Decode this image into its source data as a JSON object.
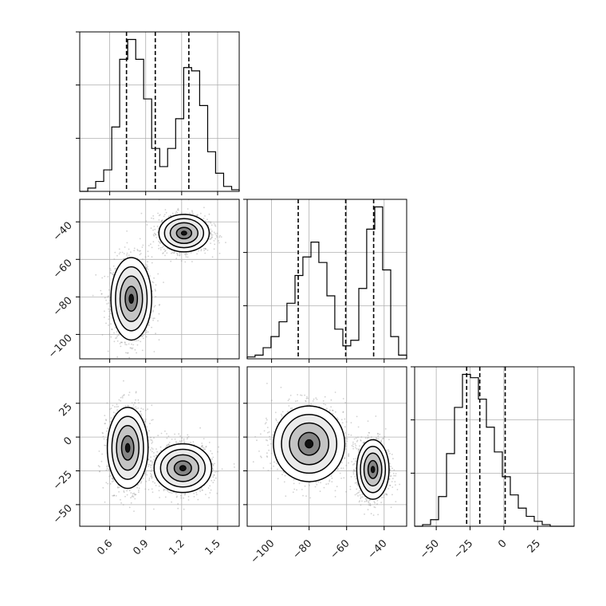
{
  "chart_data": {
    "type": "corner",
    "parameters": [
      "",
      "",
      ""
    ],
    "style": {
      "grid": true,
      "ink": "#000000",
      "grid_color": "#b0b0b0",
      "points_color": "#9a9a9a"
    },
    "axes": {
      "p0": {
        "lim": [
          0.35,
          1.68
        ],
        "ticks": [
          0.6,
          0.9,
          1.2,
          1.5
        ],
        "labels": [
          "0.6",
          "0.9",
          "1.2",
          "1.5"
        ]
      },
      "p1": {
        "lim": [
          -113,
          -28
        ],
        "ticks": [
          -100,
          -80,
          -60,
          -40
        ],
        "labels": [
          "−100",
          "−80",
          "−60",
          "−40"
        ]
      },
      "p2": {
        "lim": [
          -66,
          52
        ],
        "ticks": [
          -50,
          -25,
          0,
          25
        ],
        "labels": [
          "−50",
          "−25",
          "0",
          "25"
        ]
      }
    },
    "histograms": [
      {
        "param": "p0",
        "edges": [
          0.35,
          0.417,
          0.483,
          0.55,
          0.617,
          0.683,
          0.75,
          0.817,
          0.883,
          0.95,
          1.017,
          1.083,
          1.15,
          1.217,
          1.283,
          1.35,
          1.417,
          1.483,
          1.55,
          1.617,
          1.68
        ],
        "counts": [
          0.0,
          0.02,
          0.06,
          0.13,
          0.39,
          0.8,
          0.92,
          0.8,
          0.56,
          0.26,
          0.15,
          0.26,
          0.44,
          0.75,
          0.73,
          0.52,
          0.24,
          0.11,
          0.03,
          0.01
        ],
        "quantiles": [
          0.74,
          0.98,
          1.26
        ]
      },
      {
        "param": "p1",
        "edges": [
          -113,
          -108.8,
          -104.5,
          -100.3,
          -96,
          -91.8,
          -87.5,
          -83.3,
          -79,
          -74.8,
          -70.5,
          -66.3,
          -62,
          -57.8,
          -53.5,
          -49.3,
          -45,
          -40.8,
          -36.5,
          -32.3,
          -28
        ],
        "counts": [
          0.01,
          0.02,
          0.06,
          0.12,
          0.2,
          0.3,
          0.45,
          0.55,
          0.63,
          0.52,
          0.34,
          0.16,
          0.07,
          0.1,
          0.38,
          0.7,
          0.82,
          0.48,
          0.12,
          0.02
        ],
        "quantiles": [
          -85.8,
          -60.5,
          -45.6
        ]
      },
      {
        "param": "p2",
        "edges": [
          -66,
          -60.1,
          -54.2,
          -48.3,
          -42.4,
          -36.5,
          -30.6,
          -24.7,
          -18.8,
          -12.9,
          -7,
          -1.1,
          4.8,
          10.7,
          16.6,
          22.5,
          28.4,
          34.3,
          40.2,
          46.1,
          52
        ],
        "counts": [
          0.0,
          0.01,
          0.04,
          0.18,
          0.44,
          0.72,
          0.92,
          0.9,
          0.77,
          0.6,
          0.45,
          0.3,
          0.19,
          0.11,
          0.06,
          0.03,
          0.01,
          0.0,
          0.0,
          0.0
        ],
        "quantiles": [
          -27.5,
          -17.8,
          1.0
        ]
      }
    ],
    "scatter_panels": [
      {
        "x": "p0",
        "y": "p1",
        "clusters": [
          {
            "center": [
              0.78,
              -81
            ],
            "sd": [
              0.085,
              11
            ],
            "weight": 0.5
          },
          {
            "center": [
              1.22,
              -46
            ],
            "sd": [
              0.105,
              5
            ],
            "weight": 0.5
          }
        ]
      },
      {
        "x": "p0",
        "y": "p2",
        "clusters": [
          {
            "center": [
              0.75,
              -8
            ],
            "sd": [
              0.085,
              15
            ],
            "weight": 0.5
          },
          {
            "center": [
              1.21,
              -23
            ],
            "sd": [
              0.12,
              9
            ],
            "weight": 0.5
          }
        ]
      },
      {
        "x": "p1",
        "y": "p2",
        "clusters": [
          {
            "center": [
              -80,
              -5
            ],
            "sd": [
              9.5,
              14
            ],
            "weight": 0.5
          },
          {
            "center": [
              -46,
              -24
            ],
            "sd": [
              4.3,
              11
            ],
            "weight": 0.5
          }
        ]
      }
    ]
  }
}
